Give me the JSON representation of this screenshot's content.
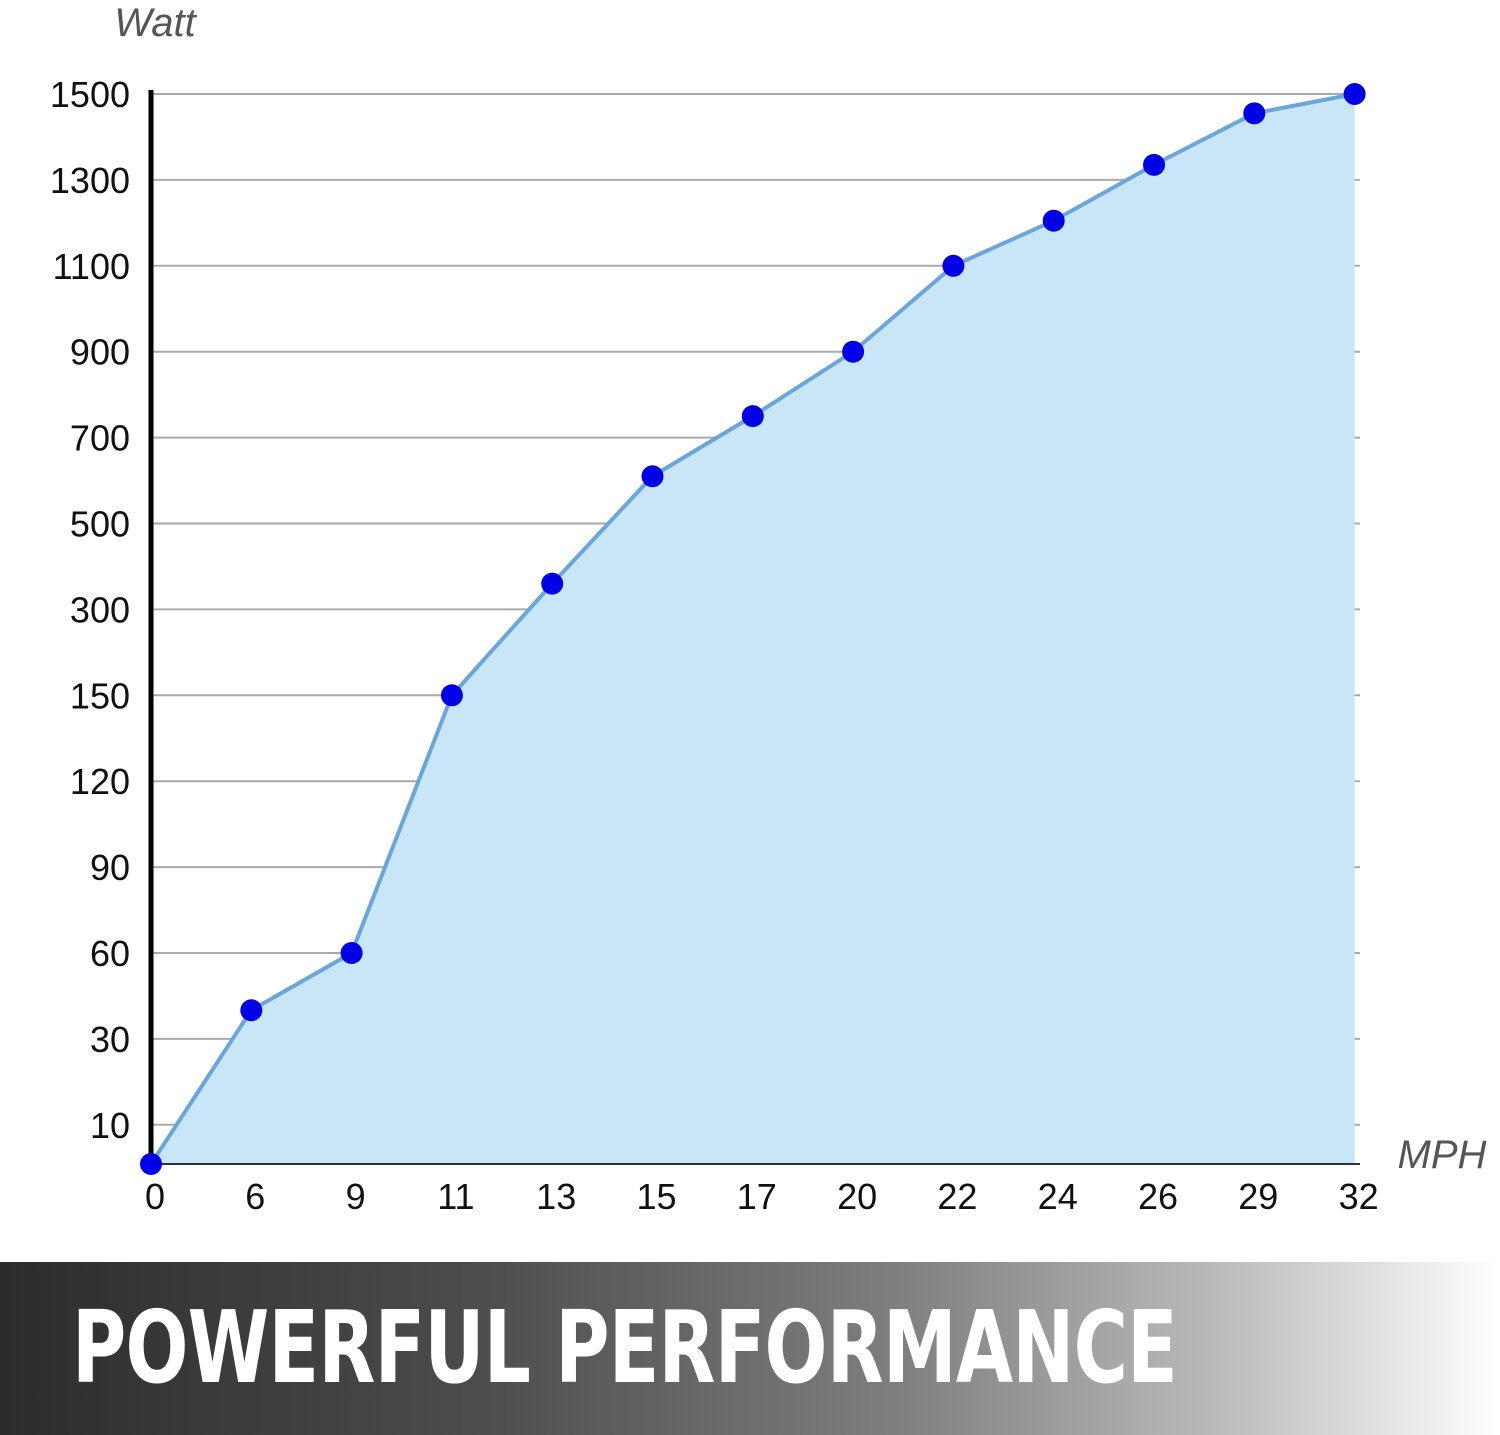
{
  "chart_data": {
    "type": "area",
    "ylabel": "Watt",
    "xlabel": "MPH",
    "x_ticks": [
      "0",
      "6",
      "9",
      "11",
      "13",
      "15",
      "17",
      "20",
      "22",
      "24",
      "26",
      "29",
      "32"
    ],
    "y_ticks": [
      "10",
      "30",
      "60",
      "90",
      "120",
      "150",
      "300",
      "500",
      "700",
      "900",
      "1100",
      "1300",
      "1500"
    ],
    "points": [
      {
        "x": 0,
        "y": 0
      },
      {
        "x": 6,
        "y": 40
      },
      {
        "x": 9,
        "y": 60
      },
      {
        "x": 11,
        "y": 150
      },
      {
        "x": 13,
        "y": 360
      },
      {
        "x": 15,
        "y": 610
      },
      {
        "x": 17,
        "y": 750
      },
      {
        "x": 20,
        "y": 900
      },
      {
        "x": 22,
        "y": 1100
      },
      {
        "x": 24,
        "y": 1205
      },
      {
        "x": 26,
        "y": 1335
      },
      {
        "x": 29,
        "y": 1455
      },
      {
        "x": 32,
        "y": 1500
      }
    ],
    "grid": true,
    "colors": {
      "fill": "#c8e6f8",
      "line": "#6aa6dc",
      "marker": "#0000e6",
      "grid": "#aaaaaa",
      "axis": "#000000"
    }
  },
  "banner": {
    "text": "POWERFUL PERFORMANCE"
  }
}
